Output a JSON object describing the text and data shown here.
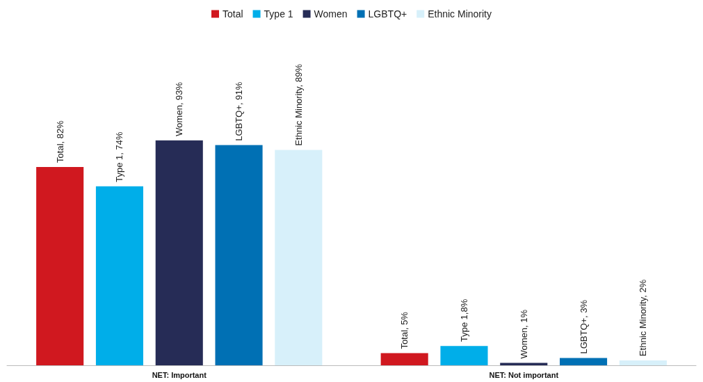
{
  "chart_data": {
    "type": "bar",
    "categories": [
      "NET: Important",
      "NET: Not important"
    ],
    "series": [
      {
        "name": "Total",
        "color": "#d0181f",
        "values": [
          82,
          5
        ],
        "value_labels": [
          "Total, 82%",
          "Total, 5%"
        ]
      },
      {
        "name": "Type 1",
        "color": "#00aee9",
        "values": [
          74,
          8
        ],
        "value_labels": [
          "Type 1, 74%",
          "Type 1,8%"
        ]
      },
      {
        "name": "Women",
        "color": "#262c56",
        "values": [
          93,
          1
        ],
        "value_labels": [
          "Women, 93%",
          "Women, 1%"
        ]
      },
      {
        "name": "LGBTQ+",
        "color": "#0070b4",
        "values": [
          91,
          3
        ],
        "value_labels": [
          "LGBTQ+, 91%",
          "LGBTQ+, 3%"
        ]
      },
      {
        "name": "Ethnic Minority",
        "color": "#d7f0fa",
        "values": [
          89,
          2
        ],
        "value_labels": [
          "Ethnic Minority, 89%",
          "Ethnic Minority, 2%"
        ]
      }
    ],
    "legend": "top"
  }
}
